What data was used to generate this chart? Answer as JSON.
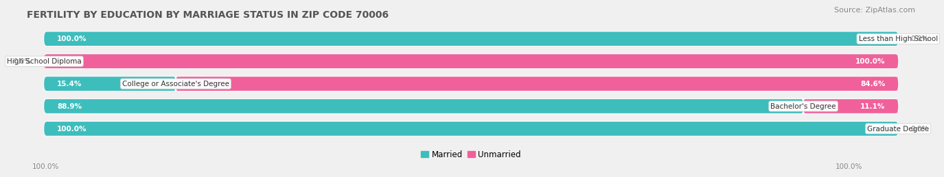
{
  "title": "FERTILITY BY EDUCATION BY MARRIAGE STATUS IN ZIP CODE 70006",
  "source": "Source: ZipAtlas.com",
  "categories": [
    "Less than High School",
    "High School Diploma",
    "College or Associate's Degree",
    "Bachelor's Degree",
    "Graduate Degree"
  ],
  "married_pct": [
    100.0,
    0.0,
    15.4,
    88.9,
    100.0
  ],
  "unmarried_pct": [
    0.0,
    100.0,
    84.6,
    11.1,
    0.0
  ],
  "married_color": "#3ebdbd",
  "unmarried_color": "#f0609a",
  "married_light": "#b2dede",
  "unmarried_light": "#f9c6d8",
  "bg_color": "#f0f0f0",
  "row_bg_color": "#e2e2e2",
  "title_color": "#555555",
  "title_fontsize": 10,
  "source_fontsize": 8,
  "label_fontsize": 7.5,
  "pct_fontsize": 7.5,
  "bar_height": 0.62,
  "total_width": 100.0
}
